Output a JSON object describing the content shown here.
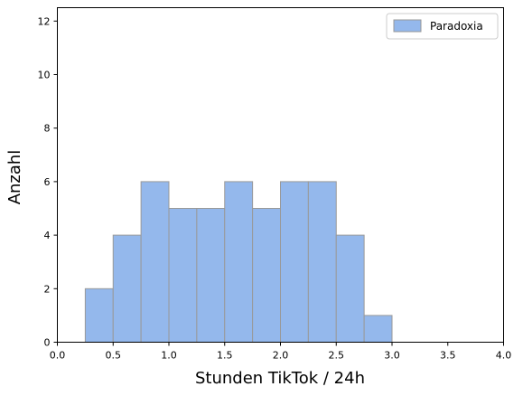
{
  "chart_data": {
    "type": "bar",
    "subtype": "histogram",
    "title": "",
    "xlabel": "Stunden TikTok / 24h",
    "ylabel": "Anzahl",
    "xlim": [
      0,
      4
    ],
    "ylim": [
      0,
      12.5
    ],
    "xticks": [
      "0.0",
      "0.5",
      "1.0",
      "1.5",
      "2.0",
      "2.5",
      "3.0",
      "3.5",
      "4.0"
    ],
    "yticks": [
      "0",
      "2",
      "4",
      "6",
      "8",
      "10",
      "12"
    ],
    "grid": false,
    "legend_position": "top-right",
    "series": [
      {
        "name": "Paradoxia",
        "color": "#94b8ec",
        "edge_color": "#999999",
        "bins": [
          [
            0.25,
            0.5,
            2
          ],
          [
            0.5,
            0.75,
            4
          ],
          [
            0.75,
            1.0,
            6
          ],
          [
            1.0,
            1.25,
            5
          ],
          [
            1.25,
            1.5,
            5
          ],
          [
            1.5,
            1.75,
            6
          ],
          [
            1.75,
            2.0,
            5
          ],
          [
            2.0,
            2.25,
            6
          ],
          [
            2.25,
            2.5,
            6
          ],
          [
            2.5,
            2.75,
            4
          ],
          [
            2.75,
            3.0,
            1
          ],
          [
            3.0,
            3.25,
            0
          ],
          [
            3.25,
            3.5,
            0
          ],
          [
            3.5,
            3.75,
            0
          ]
        ]
      }
    ]
  }
}
